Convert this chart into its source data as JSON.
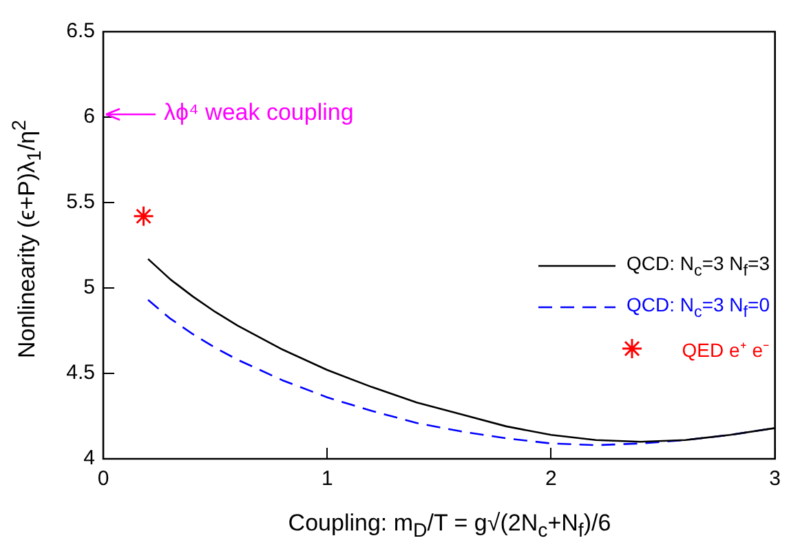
{
  "chart_data": {
    "type": "line",
    "xlabel": "Coupling:  m$_{D}$/T = g√(2N$_{c}$+N$_{f}$)/6",
    "ylabel": "Nonlinearity (ϵ+P)λ$_{1}$/η$^{2}$",
    "xlim": [
      0,
      3
    ],
    "xticks": [
      0,
      1,
      2,
      3
    ],
    "ylim": [
      4,
      6.5
    ],
    "yticks": [
      4,
      4.5,
      5,
      5.5,
      6,
      6.5
    ],
    "grid": false,
    "legend": "right",
    "annotations": [
      "λϕ⁴ weak coupling"
    ],
    "series": [
      {
        "name": "QCD: N$_{c}$=3 N$_{f}$=3",
        "color": "#000000",
        "line_style": "solid",
        "marker": "none",
        "x": [
          0.2,
          0.3,
          0.4,
          0.5,
          0.6,
          0.8,
          1.0,
          1.2,
          1.4,
          1.6,
          1.8,
          2.0,
          2.2,
          2.4,
          2.6,
          2.8,
          3.0
        ],
        "values": [
          5.17,
          5.05,
          4.95,
          4.86,
          4.78,
          4.64,
          4.52,
          4.42,
          4.33,
          4.26,
          4.19,
          4.14,
          4.11,
          4.1,
          4.11,
          4.14,
          4.18
        ]
      },
      {
        "name": "QCD: N$_{c}$=3 N$_{f}$=0",
        "color": "#0000ff",
        "line_style": "dashed",
        "marker": "none",
        "x": [
          0.2,
          0.3,
          0.4,
          0.5,
          0.6,
          0.8,
          1.0,
          1.2,
          1.4,
          1.6,
          1.8,
          2.0,
          2.2,
          2.4,
          2.6,
          2.8,
          3.0
        ],
        "values": [
          4.93,
          4.82,
          4.73,
          4.65,
          4.58,
          4.46,
          4.36,
          4.28,
          4.21,
          4.16,
          4.12,
          4.09,
          4.08,
          4.09,
          4.11,
          4.14,
          4.18
        ]
      },
      {
        "name": "QED e⁺ e⁻",
        "type": "scatter",
        "color": "#ff0000",
        "marker": "cross",
        "x": [
          0.18
        ],
        "values": [
          5.42
        ]
      }
    ]
  }
}
